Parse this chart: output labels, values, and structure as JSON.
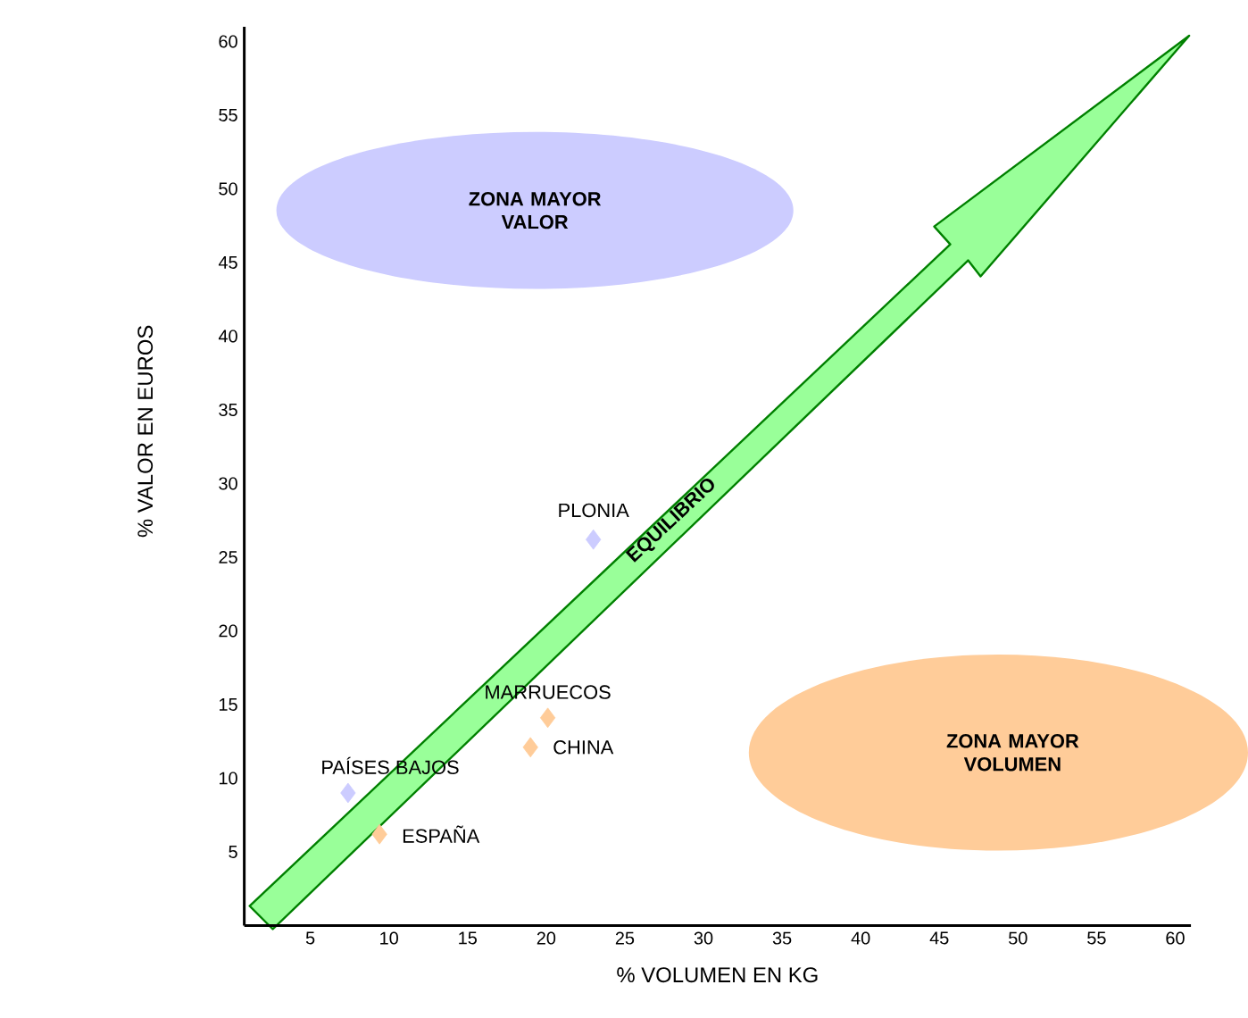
{
  "chart_data": {
    "type": "scatter",
    "xlabel": "% VOLUMEN EN KG",
    "ylabel": "% VALOR EN EUROS",
    "x": [
      23.0,
      20.1,
      19.0,
      7.4,
      9.4
    ],
    "values": [
      26.2,
      14.1,
      12.1,
      9.0,
      6.2
    ],
    "colors": [
      "#ccccff",
      "#ffcc99",
      "#ffcc99",
      "#ccccff",
      "#ffcc99"
    ],
    "marker": "diamond",
    "xlim": [
      0.8,
      61
    ],
    "ylim": [
      0,
      61
    ],
    "xticks": [
      5,
      10,
      15,
      20,
      25,
      30,
      35,
      40,
      45,
      50,
      55,
      60
    ],
    "yticks": [
      5,
      10,
      15,
      20,
      25,
      30,
      35,
      40,
      45,
      50,
      55,
      60
    ],
    "annotations": [
      {
        "text": "PLONIA",
        "x": 23.0,
        "y": 26.2
      },
      {
        "text": "MARRUECOS",
        "x": 20.1,
        "y": 14.1
      },
      {
        "text": "CHINA",
        "x": 19.0,
        "y": 12.1
      },
      {
        "text": "PAÍSES BAJOS",
        "x": 7.4,
        "y": 9.0
      },
      {
        "text": "ESPAÑA",
        "x": 9.4,
        "y": 6.2
      },
      "ZONA MAYOR VALOR",
      "ZONA MAYOR VOLUMEN",
      "EQUILIBRIO"
    ]
  }
}
